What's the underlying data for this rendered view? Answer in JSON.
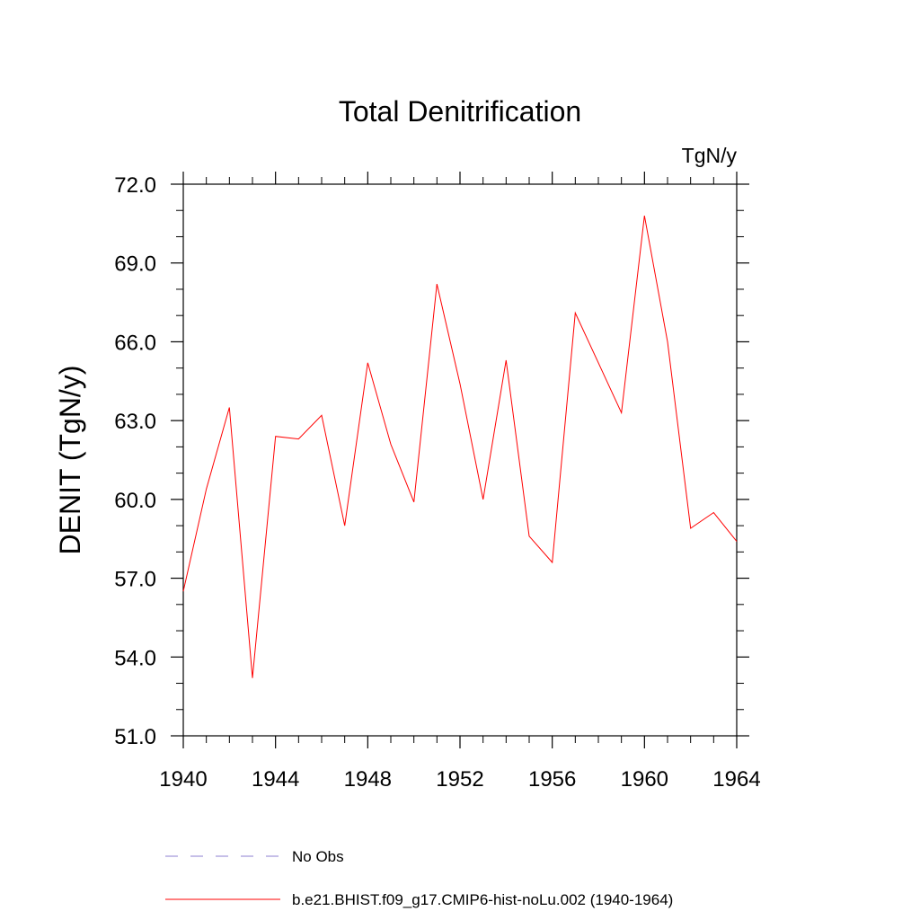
{
  "chart_data": {
    "type": "line",
    "title": "Total Denitrification",
    "units_label": "TgN/y",
    "ylabel": "DENIT  (TgN/y)",
    "xlabel": "",
    "xlim": [
      1940,
      1964
    ],
    "ylim": [
      51.0,
      72.0
    ],
    "x_ticks": [
      1940,
      1944,
      1948,
      1952,
      1956,
      1960,
      1964
    ],
    "x_tick_labels": [
      "1940",
      "1944",
      "1948",
      "1952",
      "1956",
      "1960",
      "1964"
    ],
    "x_minor_step": 1,
    "y_ticks": [
      51.0,
      54.0,
      57.0,
      60.0,
      63.0,
      66.0,
      69.0,
      72.0
    ],
    "y_tick_labels": [
      "51.0",
      "54.0",
      "57.0",
      "60.0",
      "63.0",
      "66.0",
      "69.0",
      "72.0"
    ],
    "y_minor_step": 1.0,
    "grid": false,
    "legend_position": "bottom",
    "series": [
      {
        "name": "b.e21.BHIST.f09_g17.CMIP6-hist-noLu.002 (1940-1964)",
        "color": "#ff0000",
        "dash": "solid",
        "x": [
          1940,
          1941,
          1942,
          1943,
          1944,
          1945,
          1946,
          1947,
          1948,
          1949,
          1950,
          1951,
          1952,
          1953,
          1954,
          1955,
          1956,
          1957,
          1958,
          1959,
          1960,
          1961,
          1962,
          1963,
          1964
        ],
        "values": [
          56.5,
          60.4,
          63.5,
          53.2,
          62.4,
          62.3,
          63.2,
          59.0,
          65.2,
          62.1,
          59.9,
          68.2,
          64.4,
          60.0,
          65.3,
          58.6,
          57.6,
          67.1,
          65.2,
          63.3,
          70.8,
          66.0,
          58.9,
          59.5,
          58.4
        ]
      }
    ],
    "legend": [
      {
        "label": "No Obs",
        "color": "#8c7fd0",
        "dash": "dashed"
      },
      {
        "label": "b.e21.BHIST.f09_g17.CMIP6-hist-noLu.002 (1940-1964)",
        "color": "#ff0000",
        "dash": "solid"
      }
    ]
  }
}
